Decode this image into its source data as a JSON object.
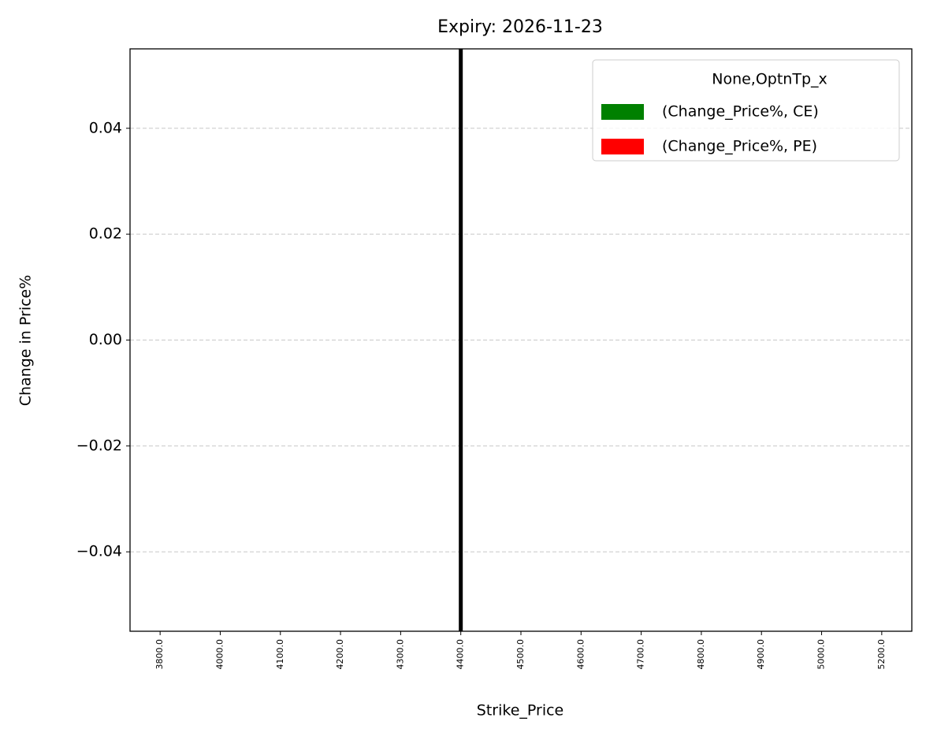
{
  "chart_data": {
    "type": "bar",
    "title": "Expiry: 2026-11-23",
    "x_label": "Strike_Price",
    "y_label": "Change in Price%",
    "categories": [
      "3800.0",
      "4000.0",
      "4100.0",
      "4200.0",
      "4300.0",
      "4400.0",
      "4500.0",
      "4600.0",
      "4700.0",
      "4800.0",
      "4900.0",
      "5000.0",
      "5200.0"
    ],
    "series": [
      {
        "name": "(Change_Price%, CE)",
        "color": "#008000",
        "values": [
          0,
          0,
          0,
          0,
          0,
          0,
          0,
          0,
          0,
          0,
          0,
          0,
          0
        ]
      },
      {
        "name": "(Change_Price%, PE)",
        "color": "#ff0000",
        "values": [
          0,
          0,
          0,
          0,
          0,
          0,
          0,
          0,
          0,
          0,
          0,
          0,
          0
        ]
      }
    ],
    "legend_title": "None,OptnTp_x",
    "legend": "upper right",
    "reference_line": {
      "x": "4400.0",
      "color": "#000000"
    },
    "ylim": [
      -0.055,
      0.055
    ],
    "yticks": [
      {
        "value": -0.04,
        "label": "−0.04"
      },
      {
        "value": -0.02,
        "label": "−0.02"
      },
      {
        "value": 0,
        "label": "0.00"
      },
      0.02,
      0.04
    ],
    "grid": true
  }
}
